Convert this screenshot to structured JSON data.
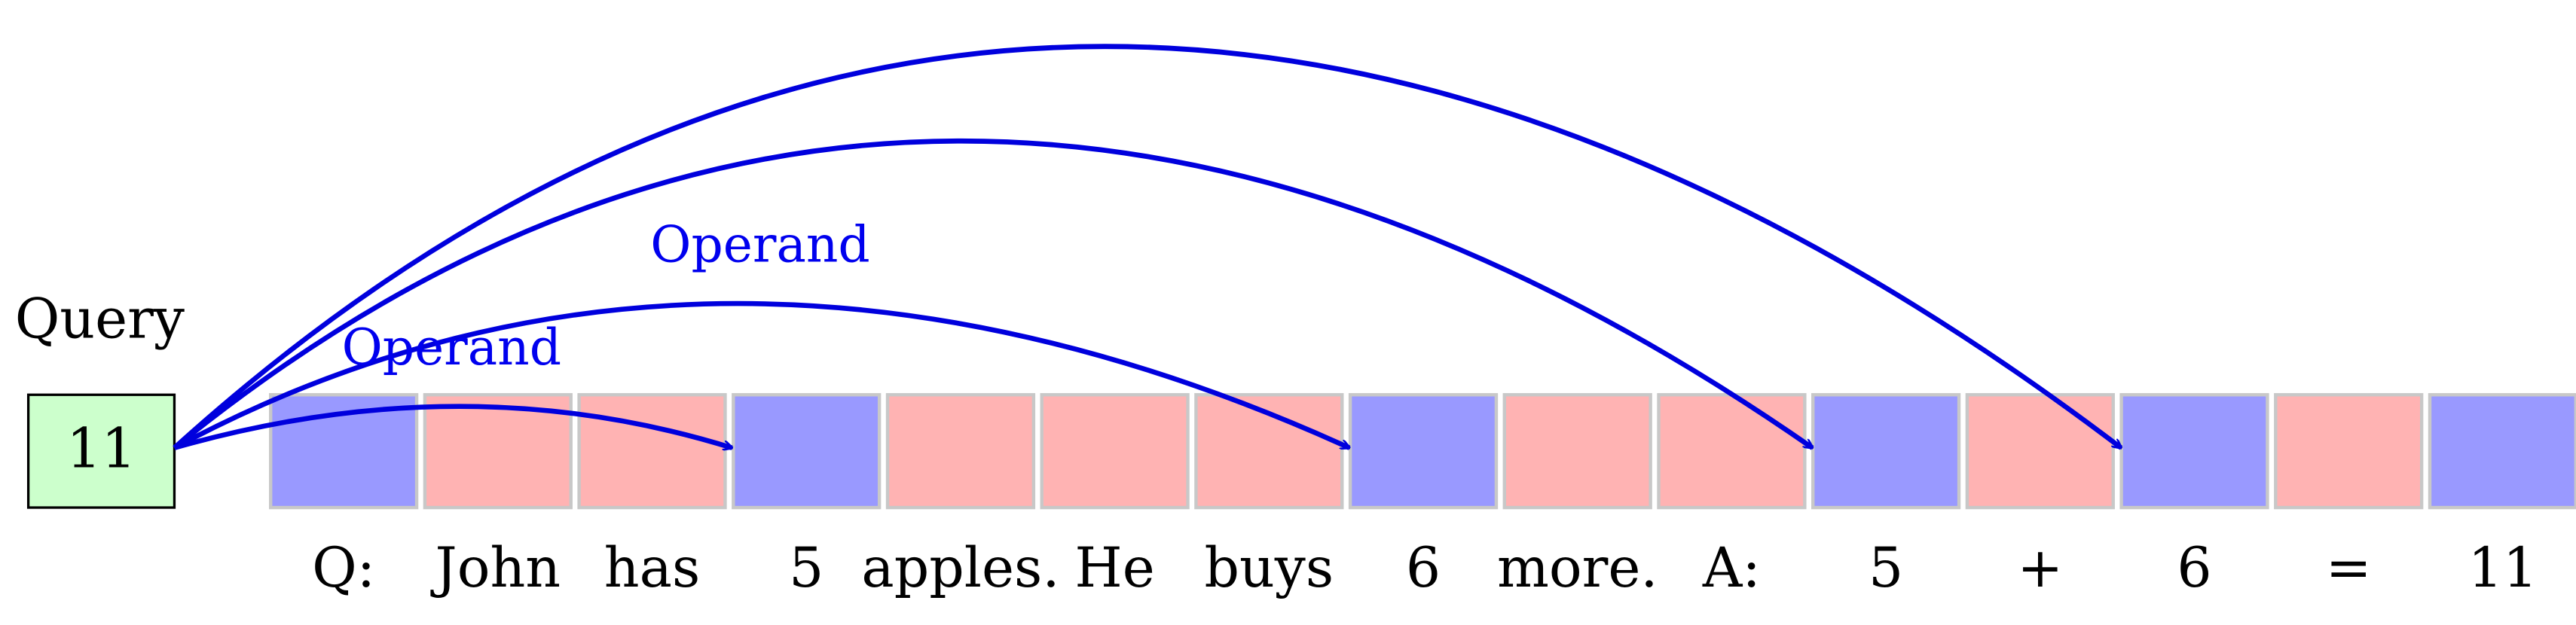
{
  "query": {
    "label": "Query",
    "value": "11",
    "color": "#ccffcc"
  },
  "tokens": [
    {
      "text": "Q:",
      "color": "#9999ff"
    },
    {
      "text": "John",
      "color": "#ffb3b3"
    },
    {
      "text": "has",
      "color": "#ffb3b3"
    },
    {
      "text": "5",
      "color": "#9999ff"
    },
    {
      "text": "apples.",
      "color": "#ffb3b3"
    },
    {
      "text": "He",
      "color": "#ffb3b3"
    },
    {
      "text": "buys",
      "color": "#ffb3b3"
    },
    {
      "text": "6",
      "color": "#9999ff"
    },
    {
      "text": "more.",
      "color": "#ffb3b3"
    },
    {
      "text": "A:",
      "color": "#ffb3b3"
    },
    {
      "text": "5",
      "color": "#9999ff"
    },
    {
      "text": "+",
      "color": "#ffb3b3"
    },
    {
      "text": "6",
      "color": "#9999ff"
    },
    {
      "text": "=",
      "color": "#ffb3b3"
    },
    {
      "text": "11",
      "color": "#9999ff"
    }
  ],
  "arrows": [
    {
      "label": "Operand"
    },
    {
      "label": "Operand"
    }
  ]
}
